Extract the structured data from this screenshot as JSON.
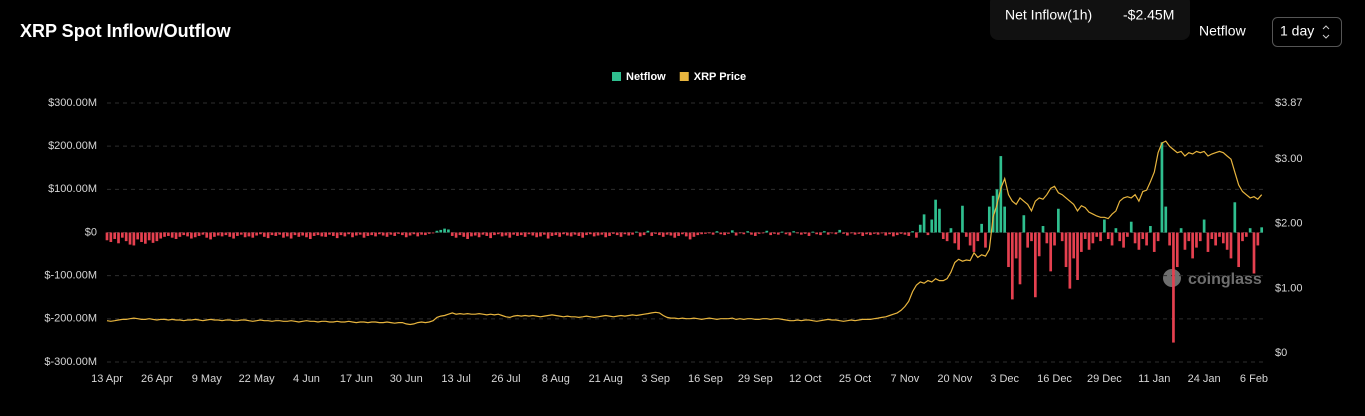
{
  "header": {
    "title": "XRP Spot Inflow/Outflow",
    "tooltip_label": "Net Inflow(1h)",
    "tooltip_value": "-$2.45M",
    "netflow_label": "Netflow",
    "interval": "1 day"
  },
  "watermark": "coinglass",
  "chart_data": {
    "type": "bar",
    "grid": true,
    "legend": "top",
    "ylim": [
      -300,
      300
    ],
    "yticks": [
      {
        "value": 300,
        "label": "$300.00M"
      },
      {
        "value": 200,
        "label": "$200.00M"
      },
      {
        "value": 100,
        "label": "$100.00M"
      },
      {
        "value": 0,
        "label": "$0"
      },
      {
        "value": -100,
        "label": "$-100.00M"
      },
      {
        "value": -200,
        "label": "$-200.00M"
      },
      {
        "value": -300,
        "label": "$-300.00M"
      }
    ],
    "y2lim": [
      -0.14,
      3.87
    ],
    "y2ticks": [
      {
        "value": 3.87,
        "label": "$3.87"
      },
      {
        "value": 3,
        "label": "$3.00"
      },
      {
        "value": 2,
        "label": "$2.00"
      },
      {
        "value": 1,
        "label": "$1.00"
      },
      {
        "value": 0,
        "label": "$0"
      }
    ],
    "categories": [
      "13 Apr",
      null,
      null,
      null,
      null,
      null,
      null,
      null,
      null,
      null,
      null,
      null,
      null,
      "26 Apr",
      null,
      null,
      null,
      null,
      null,
      null,
      null,
      null,
      null,
      null,
      null,
      null,
      "9 May",
      null,
      null,
      null,
      null,
      null,
      null,
      null,
      null,
      null,
      null,
      null,
      null,
      "22 May",
      null,
      null,
      null,
      null,
      null,
      null,
      null,
      null,
      null,
      null,
      null,
      null,
      "4 Jun",
      null,
      null,
      null,
      null,
      null,
      null,
      null,
      null,
      null,
      null,
      null,
      null,
      "17 Jun",
      null,
      null,
      null,
      null,
      null,
      null,
      null,
      null,
      null,
      null,
      null,
      null,
      "30 Jun",
      null,
      null,
      null,
      null,
      null,
      null,
      null,
      null,
      null,
      null,
      null,
      null,
      "13 Jul",
      null,
      null,
      null,
      null,
      null,
      null,
      null,
      null,
      null,
      null,
      null,
      null,
      "26 Jul",
      null,
      null,
      null,
      null,
      null,
      null,
      null,
      null,
      null,
      null,
      null,
      null,
      "8 Aug",
      null,
      null,
      null,
      null,
      null,
      null,
      null,
      null,
      null,
      null,
      null,
      null,
      "21 Aug",
      null,
      null,
      null,
      null,
      null,
      null,
      null,
      null,
      null,
      null,
      null,
      null,
      "3 Sep",
      null,
      null,
      null,
      null,
      null,
      null,
      null,
      null,
      null,
      null,
      null,
      null,
      "16 Sep",
      null,
      null,
      null,
      null,
      null,
      null,
      null,
      null,
      null,
      null,
      null,
      null,
      "29 Sep",
      null,
      null,
      null,
      null,
      null,
      null,
      null,
      null,
      null,
      null,
      null,
      null,
      "12 Oct",
      null,
      null,
      null,
      null,
      null,
      null,
      null,
      null,
      null,
      null,
      null,
      null,
      "25 Oct",
      null,
      null,
      null,
      null,
      null,
      null,
      null,
      null,
      null,
      null,
      null,
      null,
      "7 Nov",
      null,
      null,
      null,
      null,
      null,
      null,
      null,
      null,
      null,
      null,
      null,
      null,
      "20 Nov",
      null,
      null,
      null,
      null,
      null,
      null,
      null,
      null,
      null,
      null,
      null,
      null,
      "3 Dec",
      null,
      null,
      null,
      null,
      null,
      null,
      null,
      null,
      null,
      null,
      null,
      null,
      "16 Dec",
      null,
      null,
      null,
      null,
      null,
      null,
      null,
      null,
      null,
      null,
      null,
      null,
      "29 Dec",
      null,
      null,
      null,
      null,
      null,
      null,
      null,
      null,
      null,
      null,
      null,
      null,
      "11 Jan",
      null,
      null,
      null,
      null,
      null,
      null,
      null,
      null,
      null,
      null,
      null,
      null,
      "24 Jan",
      null,
      null,
      null,
      null,
      null,
      null,
      null,
      null,
      null,
      null,
      null,
      null,
      "6 Feb",
      null,
      null
    ],
    "series": [
      {
        "name": "Netflow",
        "color": "#2fbf8f",
        "negative_color": "#e5404f",
        "values": [
          -18,
          -22,
          -15,
          -25,
          -12,
          -20,
          -28,
          -30,
          -16,
          -22,
          -26,
          -18,
          -24,
          -20,
          -14,
          -10,
          -8,
          -12,
          -15,
          -10,
          -6,
          -9,
          -14,
          -11,
          -8,
          -5,
          -12,
          -16,
          -10,
          -7,
          -9,
          -6,
          -10,
          -14,
          -8,
          -5,
          -11,
          -9,
          -12,
          -7,
          -4,
          -10,
          -13,
          -6,
          -8,
          -5,
          -12,
          -9,
          -14,
          -6,
          -10,
          -7,
          -11,
          -15,
          -8,
          -6,
          -9,
          -10,
          -5,
          -8,
          -13,
          -6,
          -9,
          -4,
          -11,
          -7,
          -5,
          -12,
          -8,
          -6,
          -9,
          -4,
          -7,
          -10,
          -5,
          -8,
          -3,
          -6,
          -11,
          -7,
          -4,
          -9,
          -5,
          -6,
          -3,
          -2,
          4,
          6,
          9,
          7,
          -8,
          -12,
          -6,
          -10,
          -15,
          -9,
          -7,
          -11,
          -5,
          -8,
          -13,
          -6,
          -4,
          -9,
          -7,
          -12,
          -5,
          -8,
          -6,
          -10,
          -4,
          -7,
          -11,
          -9,
          -5,
          -14,
          -8,
          -6,
          -10,
          -4,
          -7,
          -9,
          -5,
          -8,
          -12,
          -6,
          -4,
          -9,
          -7,
          -5,
          -11,
          -8,
          -3,
          -6,
          -10,
          -4,
          -7,
          -5,
          2,
          -9,
          -6,
          4,
          -8,
          -3,
          -6,
          -10,
          -5,
          -7,
          -12,
          -8,
          -4,
          -9,
          -16,
          -10,
          -6,
          -4,
          -3,
          -2,
          -5,
          3,
          -4,
          -6,
          -3,
          5,
          -7,
          -2,
          -4,
          3,
          -5,
          -8,
          -3,
          -2,
          4,
          -6,
          -3,
          -5,
          2,
          -4,
          -7,
          3,
          -2,
          -5,
          -3,
          -8,
          2,
          -4,
          -6,
          3,
          -5,
          -2,
          -4,
          6,
          -3,
          -7,
          -2,
          -5,
          -3,
          -8,
          -4,
          -6,
          -3,
          -5,
          -2,
          -7,
          -4,
          -9,
          -6,
          -3,
          -5,
          -8,
          3,
          -12,
          18,
          42,
          -6,
          30,
          76,
          55,
          -15,
          -20,
          10,
          -25,
          -40,
          62,
          -10,
          -30,
          -45,
          -20,
          20,
          -35,
          60,
          85,
          100,
          177,
          60,
          -80,
          -155,
          -60,
          -120,
          40,
          -35,
          -20,
          -150,
          -55,
          15,
          -25,
          -90,
          -30,
          55,
          -20,
          -80,
          -130,
          -60,
          -110,
          -45,
          -15,
          -40,
          -25,
          -10,
          -20,
          30,
          -15,
          -30,
          10,
          -20,
          -35,
          -10,
          25,
          -25,
          -40,
          -15,
          -30,
          15,
          -45,
          -20,
          209,
          60,
          -30,
          -255,
          -80,
          10,
          -40,
          -20,
          -60,
          -35,
          -20,
          30,
          -45,
          -15,
          -30,
          -10,
          -25,
          -40,
          -60,
          70,
          -80,
          -20,
          -10,
          10,
          -95,
          -30,
          12
        ]
      },
      {
        "name": "XRP Price",
        "color": "#e8b53e",
        "type": "line",
        "axis": "y2",
        "values": [
          0.5,
          0.49,
          0.5,
          0.51,
          0.52,
          0.52,
          0.53,
          0.54,
          0.53,
          0.52,
          0.52,
          0.53,
          0.52,
          0.51,
          0.52,
          0.52,
          0.51,
          0.52,
          0.51,
          0.51,
          0.5,
          0.51,
          0.51,
          0.52,
          0.51,
          0.5,
          0.51,
          0.52,
          0.51,
          0.51,
          0.5,
          0.51,
          0.51,
          0.5,
          0.5,
          0.51,
          0.51,
          0.5,
          0.49,
          0.5,
          0.51,
          0.5,
          0.5,
          0.49,
          0.5,
          0.5,
          0.49,
          0.49,
          0.5,
          0.49,
          0.48,
          0.49,
          0.5,
          0.49,
          0.49,
          0.48,
          0.49,
          0.49,
          0.48,
          0.48,
          0.49,
          0.48,
          0.48,
          0.49,
          0.48,
          0.47,
          0.48,
          0.48,
          0.47,
          0.48,
          0.48,
          0.47,
          0.47,
          0.48,
          0.47,
          0.46,
          0.47,
          0.47,
          0.45,
          0.44,
          0.45,
          0.47,
          0.48,
          0.47,
          0.48,
          0.5,
          0.55,
          0.57,
          0.58,
          0.6,
          0.62,
          0.6,
          0.61,
          0.6,
          0.61,
          0.6,
          0.6,
          0.61,
          0.6,
          0.59,
          0.6,
          0.59,
          0.6,
          0.58,
          0.56,
          0.55,
          0.57,
          0.58,
          0.57,
          0.58,
          0.57,
          0.58,
          0.57,
          0.56,
          0.57,
          0.58,
          0.59,
          0.58,
          0.57,
          0.56,
          0.57,
          0.56,
          0.56,
          0.55,
          0.56,
          0.57,
          0.56,
          0.55,
          0.56,
          0.57,
          0.58,
          0.57,
          0.56,
          0.57,
          0.58,
          0.57,
          0.58,
          0.59,
          0.58,
          0.59,
          0.6,
          0.61,
          0.62,
          0.63,
          0.62,
          0.58,
          0.55,
          0.54,
          0.54,
          0.53,
          0.54,
          0.53,
          0.53,
          0.54,
          0.53,
          0.52,
          0.53,
          0.54,
          0.53,
          0.52,
          0.53,
          0.53,
          0.53,
          0.54,
          0.52,
          0.53,
          0.52,
          0.53,
          0.53,
          0.52,
          0.52,
          0.53,
          0.53,
          0.52,
          0.53,
          0.53,
          0.52,
          0.51,
          0.5,
          0.5,
          0.51,
          0.5,
          0.51,
          0.51,
          0.5,
          0.49,
          0.5,
          0.51,
          0.52,
          0.51,
          0.51,
          0.5,
          0.49,
          0.5,
          0.51,
          0.5,
          0.51,
          0.52,
          0.52,
          0.52,
          0.53,
          0.54,
          0.55,
          0.56,
          0.58,
          0.6,
          0.62,
          0.66,
          0.72,
          0.8,
          0.95,
          1.05,
          1.1,
          1.08,
          1.12,
          1.1,
          1.15,
          1.12,
          1.12,
          1.15,
          1.25,
          1.4,
          1.45,
          1.42,
          1.44,
          1.43,
          1.55,
          1.48,
          1.52,
          1.5,
          1.6,
          2.1,
          2.3,
          2.55,
          2.7,
          2.45,
          2.35,
          2.3,
          2.4,
          2.35,
          2.3,
          2.2,
          2.35,
          2.4,
          2.38,
          2.45,
          2.55,
          2.58,
          2.48,
          2.45,
          2.4,
          2.35,
          2.3,
          2.2,
          2.28,
          2.25,
          2.18,
          2.15,
          2.12,
          2.1,
          2.1,
          2.08,
          2.15,
          2.2,
          2.35,
          2.4,
          2.42,
          2.4,
          2.45,
          2.35,
          2.5,
          2.52,
          2.65,
          2.8,
          3.1,
          3.25,
          3.28,
          3.2,
          3.15,
          3.1,
          3.12,
          3.05,
          3.1,
          3.08,
          3.12,
          3.1,
          3.12,
          3.05,
          3.08,
          3.1,
          3.12,
          3.1,
          3.05,
          3.0,
          2.8,
          2.6,
          2.5,
          2.45,
          2.4,
          2.42,
          2.38,
          2.45
        ]
      }
    ]
  }
}
